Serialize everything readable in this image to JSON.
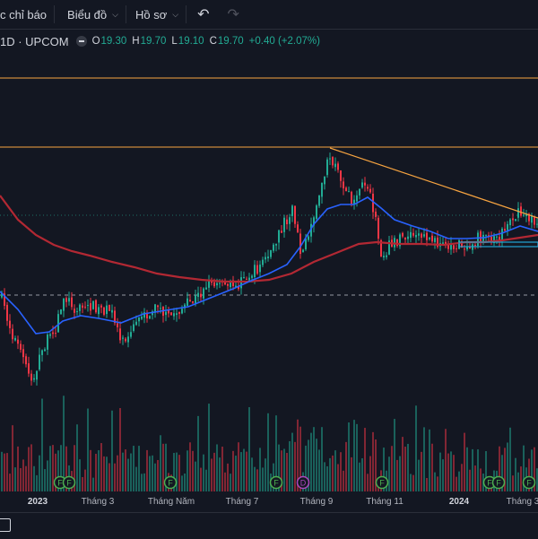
{
  "toolbar": {
    "indicators_label": "c chỉ báo",
    "chart_label": "Biểu đồ",
    "profile_label": "Hồ sơ",
    "undo_icon": "undo-icon",
    "redo_icon": "redo-icon"
  },
  "legend": {
    "symbol": "1D · UPCOM",
    "open_label": "O",
    "open_value": "19.30",
    "high_label": "H",
    "high_value": "19.70",
    "low_label": "L",
    "low_value": "19.10",
    "close_label": "C",
    "close_value": "19.70",
    "change": "+0.40 (+2.07%)"
  },
  "colors": {
    "background": "#131722",
    "up": "#22ab94",
    "down": "#f23645",
    "ma_fast": "#2962ff",
    "ma_slow": "#b22833",
    "trendline": "#f7a440",
    "support_box": "#22a6d6",
    "event_dividend": "#4caf50",
    "event_d": "#ab47bc"
  },
  "axis": {
    "labels": [
      "2023",
      "Tháng 3",
      "Tháng Năm",
      "Tháng 7",
      "Tháng 9",
      "Tháng 11",
      "2024",
      "Tháng 3"
    ],
    "bold": [
      "2023",
      "2024"
    ]
  },
  "chart_data": {
    "type": "candlestick",
    "series": [
      {
        "name": "price",
        "style": "candles with moving averages"
      },
      {
        "name": "volume",
        "style": "bars"
      }
    ],
    "price_trend_key_points": [
      {
        "x": "Tháng 1 2023",
        "level": "low"
      },
      {
        "x": "Tháng 3",
        "level": "mid"
      },
      {
        "x": "Tháng Năm",
        "level": "low-mid"
      },
      {
        "x": "Tháng 7",
        "level": "mid"
      },
      {
        "x": "Tháng 9",
        "level": "peak"
      },
      {
        "x": "Tháng 11",
        "level": "high-mid"
      },
      {
        "x": "2024",
        "level": "high-mid"
      },
      {
        "x": "Tháng 3 2024",
        "level": "high-mid"
      }
    ],
    "event_markers": [
      "F",
      "F",
      "F",
      "F",
      "D",
      "F",
      "F",
      "F",
      "F"
    ],
    "grid": false,
    "legend_placement": "top-left"
  }
}
